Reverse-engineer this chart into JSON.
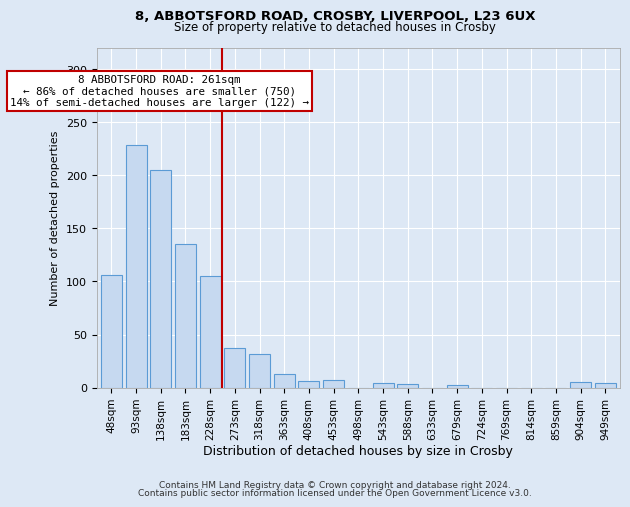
{
  "title1": "8, ABBOTSFORD ROAD, CROSBY, LIVERPOOL, L23 6UX",
  "title2": "Size of property relative to detached houses in Crosby",
  "xlabel": "Distribution of detached houses by size in Crosby",
  "ylabel": "Number of detached properties",
  "bar_color": "#c6d9f0",
  "bar_edge_color": "#5b9bd5",
  "categories": [
    "48sqm",
    "93sqm",
    "138sqm",
    "183sqm",
    "228sqm",
    "273sqm",
    "318sqm",
    "363sqm",
    "408sqm",
    "453sqm",
    "498sqm",
    "543sqm",
    "588sqm",
    "633sqm",
    "679sqm",
    "724sqm",
    "769sqm",
    "814sqm",
    "859sqm",
    "904sqm",
    "949sqm"
  ],
  "values": [
    106,
    229,
    205,
    135,
    105,
    37,
    32,
    13,
    6,
    7,
    0,
    4,
    3,
    0,
    2,
    0,
    0,
    0,
    0,
    5,
    4
  ],
  "ylim": [
    0,
    320
  ],
  "yticks": [
    0,
    50,
    100,
    150,
    200,
    250,
    300
  ],
  "red_line_bin": 4,
  "annotation_line1": "8 ABBOTSFORD ROAD: 261sqm",
  "annotation_line2": "← 86% of detached houses are smaller (750)",
  "annotation_line3": "14% of semi-detached houses are larger (122) →",
  "box_color": "#ffffff",
  "box_edge_color": "#c00000",
  "red_line_color": "#c00000",
  "footer1": "Contains HM Land Registry data © Crown copyright and database right 2024.",
  "footer2": "Contains public sector information licensed under the Open Government Licence v3.0.",
  "background_color": "#dde8f5",
  "grid_color": "#ffffff"
}
